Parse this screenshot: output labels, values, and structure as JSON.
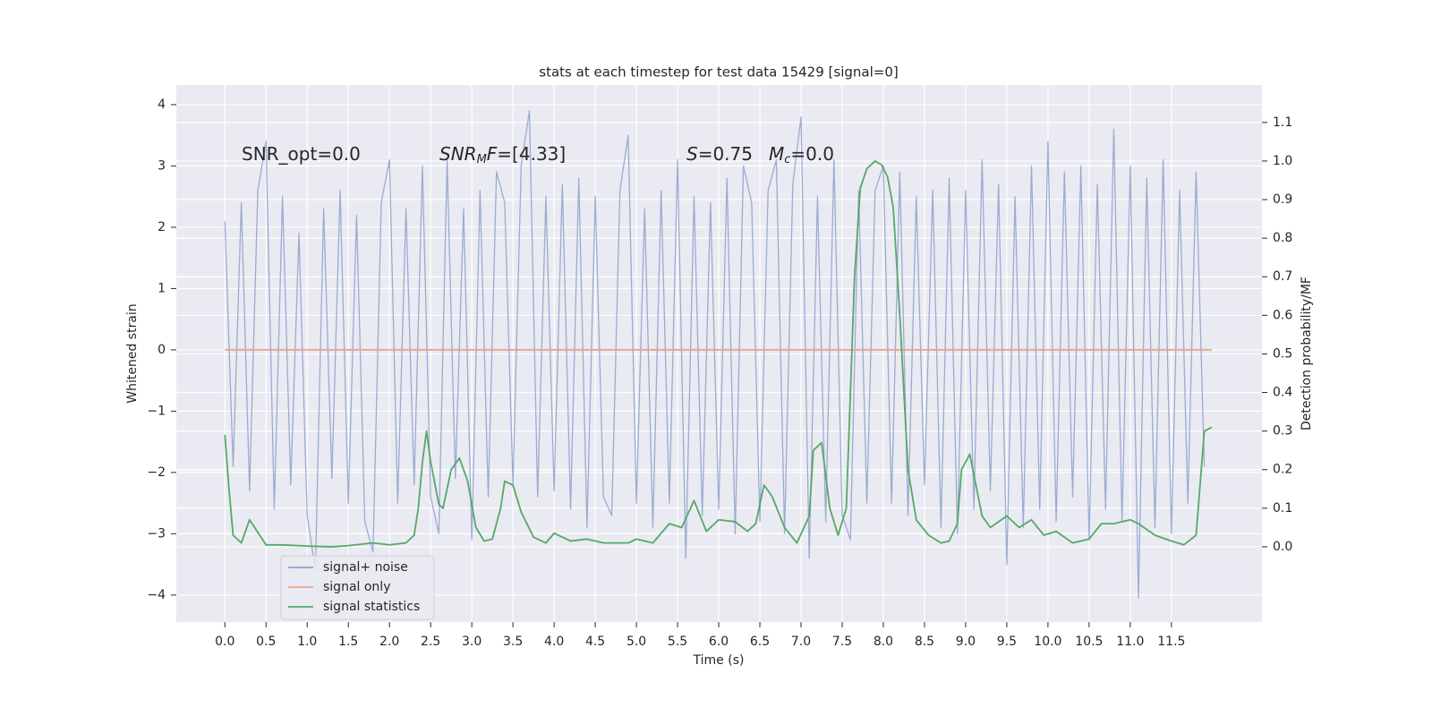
{
  "chart_data": {
    "type": "line",
    "title": "stats at each timestep for test data 15429 [signal=0]",
    "xlabel": "Time (s)",
    "ylabel": "Whitened strain",
    "y2label": "Detection probability/MF",
    "xlim": [
      -0.59,
      12.6
    ],
    "ylim": [
      -4.44,
      4.32
    ],
    "y2lim": [
      -0.195,
      1.197
    ],
    "xticks": [
      {
        "value": 0,
        "label": "0.0"
      },
      0.5,
      {
        "value": 1,
        "label": "1.0"
      },
      1.5,
      {
        "value": 2,
        "label": "2.0"
      },
      2.5,
      {
        "value": 3,
        "label": "3.0"
      },
      3.5,
      {
        "value": 4,
        "label": "4.0"
      },
      4.5,
      {
        "value": 5,
        "label": "5.0"
      },
      5.5,
      {
        "value": 6,
        "label": "6.0"
      },
      6.5,
      {
        "value": 7,
        "label": "7.0"
      },
      7.5,
      {
        "value": 8,
        "label": "8.0"
      },
      8.5,
      {
        "value": 9,
        "label": "9.0"
      },
      9.5,
      {
        "value": 10,
        "label": "10.0"
      },
      10.5,
      {
        "value": 11,
        "label": "11.0"
      },
      11.5
    ],
    "yticks": [
      {
        "value": -4,
        "label": "−4"
      },
      {
        "value": -3,
        "label": "−3"
      },
      {
        "value": -2,
        "label": "−2"
      },
      {
        "value": -1,
        "label": "−1"
      },
      0,
      1,
      2,
      3,
      4
    ],
    "y2ticks": [
      {
        "value": 0,
        "label": "0.0"
      },
      0.1,
      0.2,
      0.3,
      0.4,
      0.5,
      0.6,
      0.7,
      0.8,
      0.9,
      {
        "value": 1,
        "label": "1.0"
      },
      1.1
    ],
    "grid": true,
    "legend": "lower left",
    "annotations": [
      {
        "parts": [
          {
            "text": "SNR_opt=0.0"
          }
        ]
      },
      {
        "parts": [
          {
            "text": "SNR",
            "italic": true
          },
          {
            "text": "M",
            "italic": true,
            "sub": true
          },
          {
            "text": "F",
            "italic": true
          },
          {
            "text": "=[4.33]"
          }
        ]
      },
      {
        "parts": [
          {
            "text": "S",
            "italic": true
          },
          {
            "text": "=0.75"
          }
        ]
      },
      {
        "parts": [
          {
            "text": "M",
            "italic": true
          },
          {
            "text": "c",
            "italic": true,
            "sub": true
          },
          {
            "text": "=0.0"
          }
        ]
      }
    ],
    "series": [
      {
        "name": "signal+ noise",
        "color": "#8da0cb",
        "x": [
          0.0,
          0.1,
          0.2,
          0.3,
          0.4,
          0.5,
          0.6,
          0.7,
          0.8,
          0.9,
          1.0,
          1.1,
          1.2,
          1.3,
          1.4,
          1.5,
          1.6,
          1.7,
          1.8,
          1.9,
          2.0,
          2.1,
          2.2,
          2.3,
          2.4,
          2.5,
          2.6,
          2.7,
          2.8,
          2.9,
          3.0,
          3.1,
          3.2,
          3.3,
          3.4,
          3.5,
          3.6,
          3.7,
          3.8,
          3.9,
          4.0,
          4.1,
          4.2,
          4.3,
          4.4,
          4.5,
          4.6,
          4.7,
          4.8,
          4.9,
          5.0,
          5.1,
          5.2,
          5.3,
          5.4,
          5.5,
          5.6,
          5.7,
          5.8,
          5.9,
          6.0,
          6.1,
          6.2,
          6.3,
          6.4,
          6.5,
          6.6,
          6.7,
          6.8,
          6.9,
          7.0,
          7.1,
          7.2,
          7.3,
          7.4,
          7.5,
          7.6,
          7.7,
          7.8,
          7.9,
          8.0,
          8.1,
          8.2,
          8.3,
          8.4,
          8.5,
          8.6,
          8.7,
          8.8,
          8.9,
          9.0,
          9.1,
          9.2,
          9.3,
          9.4,
          9.5,
          9.6,
          9.7,
          9.8,
          9.9,
          10.0,
          10.1,
          10.2,
          10.3,
          10.4,
          10.5,
          10.6,
          10.7,
          10.8,
          10.9,
          11.0,
          11.1,
          11.2,
          11.3,
          11.4,
          11.5,
          11.6,
          11.7,
          11.8,
          11.9
        ],
        "values": [
          2.1,
          -1.9,
          2.4,
          -2.3,
          2.6,
          3.4,
          -2.6,
          2.5,
          -2.2,
          1.9,
          -2.7,
          -3.6,
          2.3,
          -2.1,
          2.6,
          -2.5,
          2.2,
          -2.8,
          -3.3,
          2.4,
          3.1,
          -2.5,
          2.3,
          -2.2,
          3.0,
          -2.4,
          -3.0,
          3.1,
          -2.1,
          2.3,
          -3.1,
          2.6,
          -2.4,
          2.9,
          2.4,
          -2.2,
          3.0,
          3.9,
          -2.4,
          2.5,
          -2.3,
          2.7,
          -2.6,
          2.8,
          -2.9,
          2.5,
          -2.4,
          -2.7,
          2.6,
          3.5,
          -2.5,
          2.3,
          -2.9,
          2.6,
          -2.5,
          3.1,
          -3.4,
          2.5,
          -2.7,
          2.4,
          -2.6,
          2.8,
          -3.0,
          3.0,
          2.4,
          -2.8,
          2.6,
          3.1,
          -3.0,
          2.7,
          3.8,
          -3.4,
          2.5,
          -2.8,
          3.1,
          -2.7,
          -3.1,
          2.6,
          -2.5,
          2.6,
          3.0,
          -2.5,
          2.9,
          -2.7,
          2.5,
          -2.2,
          2.6,
          -2.9,
          2.8,
          -3.0,
          2.6,
          -2.6,
          3.1,
          -2.3,
          2.7,
          -3.5,
          2.5,
          -2.9,
          3.0,
          -2.6,
          3.4,
          -2.8,
          2.9,
          -2.4,
          3.0,
          -3.1,
          2.7,
          -2.6,
          3.6,
          -2.8,
          3.0,
          -4.05,
          2.8,
          -2.9,
          3.1,
          -3.0,
          2.6,
          -2.5,
          2.9,
          -1.9
        ]
      },
      {
        "name": "signal only",
        "color": "#e5a48a",
        "x": [
          0.0,
          11.99
        ],
        "values": [
          0,
          0
        ]
      },
      {
        "name": "signal statistics",
        "color": "#55a868",
        "axis": "y2",
        "x": [
          0,
          0.05,
          0.1,
          0.2,
          0.3,
          0.5,
          0.7,
          1.0,
          1.3,
          1.5,
          1.8,
          2.0,
          2.2,
          2.3,
          2.35,
          2.4,
          2.45,
          2.5,
          2.6,
          2.65,
          2.75,
          2.85,
          2.95,
          3.05,
          3.15,
          3.25,
          3.35,
          3.4,
          3.5,
          3.6,
          3.75,
          3.9,
          4.0,
          4.2,
          4.4,
          4.6,
          4.9,
          5.0,
          5.2,
          5.4,
          5.55,
          5.7,
          5.85,
          6.0,
          6.2,
          6.35,
          6.45,
          6.55,
          6.65,
          6.8,
          6.95,
          7.1,
          7.15,
          7.25,
          7.35,
          7.45,
          7.55,
          7.6,
          7.65,
          7.72,
          7.8,
          7.9,
          7.98,
          8.05,
          8.12,
          8.2,
          8.3,
          8.4,
          8.55,
          8.7,
          8.8,
          8.9,
          8.95,
          9.05,
          9.2,
          9.3,
          9.5,
          9.65,
          9.8,
          9.95,
          10.1,
          10.3,
          10.5,
          10.65,
          10.8,
          11.0,
          11.1,
          11.3,
          11.5,
          11.65,
          11.8,
          11.9,
          11.99
        ],
        "values": [
          0.29,
          0.15,
          0.03,
          0.01,
          0.07,
          0.005,
          0.005,
          0.002,
          0.0,
          0.003,
          0.01,
          0.005,
          0.01,
          0.03,
          0.1,
          0.22,
          0.3,
          0.22,
          0.11,
          0.1,
          0.2,
          0.23,
          0.17,
          0.05,
          0.015,
          0.02,
          0.1,
          0.17,
          0.16,
          0.09,
          0.025,
          0.01,
          0.035,
          0.015,
          0.02,
          0.01,
          0.01,
          0.02,
          0.01,
          0.06,
          0.05,
          0.12,
          0.04,
          0.07,
          0.065,
          0.04,
          0.06,
          0.16,
          0.13,
          0.05,
          0.01,
          0.08,
          0.25,
          0.27,
          0.1,
          0.03,
          0.1,
          0.4,
          0.7,
          0.93,
          0.98,
          1.0,
          0.99,
          0.96,
          0.88,
          0.6,
          0.2,
          0.07,
          0.03,
          0.01,
          0.015,
          0.06,
          0.2,
          0.24,
          0.08,
          0.05,
          0.08,
          0.05,
          0.07,
          0.03,
          0.04,
          0.01,
          0.02,
          0.06,
          0.06,
          0.07,
          0.06,
          0.03,
          0.015,
          0.005,
          0.03,
          0.3,
          0.31
        ]
      }
    ]
  }
}
